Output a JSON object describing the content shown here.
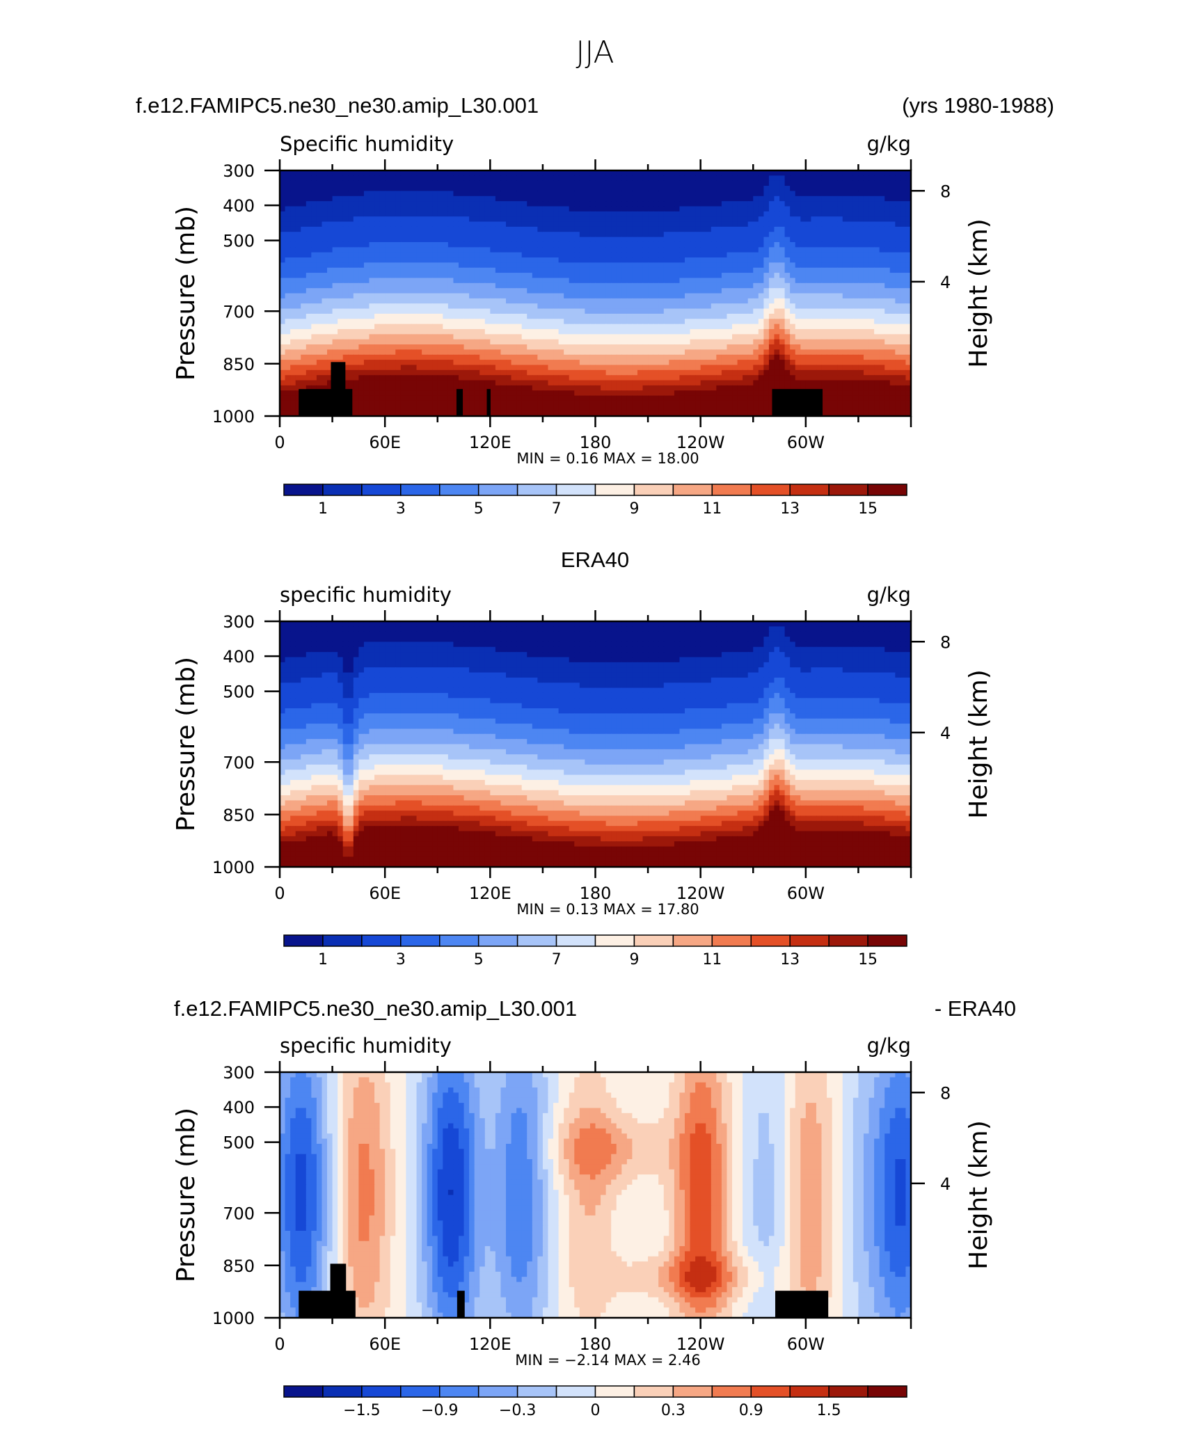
{
  "page_title": "JJA",
  "case_label": "f.e12.FAMIPC5.ne30_ne30.amip_L30.001",
  "years_label": "(yrs 1980-1988)",
  "chart_data": [
    {
      "type": "heatmap",
      "title": "",
      "subtitle_left": "Specific humidity",
      "subtitle_right": "g/kg",
      "ylabel": "Pressure (mb)",
      "y2label": "Height (km)",
      "x_ticks": [
        "0",
        "60E",
        "120E",
        "180",
        "120W",
        "60W"
      ],
      "y_ticks": [
        "300",
        "400",
        "500",
        "700",
        "850",
        "1000"
      ],
      "y2_ticks": [
        "8",
        "4"
      ],
      "minmax": "MIN =   0.16   MAX =   18.00",
      "colorbar_labels": [
        "1",
        "3",
        "5",
        "7",
        "9",
        "11",
        "13",
        "15"
      ],
      "colors": [
        "#08148c",
        "#0a2fb4",
        "#1648d6",
        "#2b66e8",
        "#4d86f2",
        "#7ca5f6",
        "#a7c4f8",
        "#d2e2fb",
        "#fdf0e4",
        "#fad0b8",
        "#f6a784",
        "#f17b50",
        "#e45027",
        "#c52f12",
        "#9c180a",
        "#780505"
      ],
      "levels": [
        0.5,
        1,
        2,
        3,
        4,
        5,
        6,
        7,
        8,
        9,
        10,
        11,
        12,
        13,
        14,
        15,
        16
      ],
      "topography": true
    },
    {
      "type": "heatmap",
      "title": "ERA40",
      "subtitle_left": "specific humidity",
      "subtitle_right": "g/kg",
      "ylabel": "Pressure (mb)",
      "y2label": "Height (km)",
      "x_ticks": [
        "0",
        "60E",
        "120E",
        "180",
        "120W",
        "60W"
      ],
      "y_ticks": [
        "300",
        "400",
        "500",
        "700",
        "850",
        "1000"
      ],
      "y2_ticks": [
        "8",
        "4"
      ],
      "minmax": "MIN =   0.13   MAX =   17.80",
      "colorbar_labels": [
        "1",
        "3",
        "5",
        "7",
        "9",
        "11",
        "13",
        "15"
      ],
      "colors": [
        "#08148c",
        "#0a2fb4",
        "#1648d6",
        "#2b66e8",
        "#4d86f2",
        "#7ca5f6",
        "#a7c4f8",
        "#d2e2fb",
        "#fdf0e4",
        "#fad0b8",
        "#f6a784",
        "#f17b50",
        "#e45027",
        "#c52f12",
        "#9c180a",
        "#780505"
      ],
      "levels": [
        0.5,
        1,
        2,
        3,
        4,
        5,
        6,
        7,
        8,
        9,
        10,
        11,
        12,
        13,
        14,
        15,
        16
      ],
      "topography": false
    },
    {
      "type": "heatmap",
      "title": "f.e12.FAMIPC5.ne30_ne30.amip_L30.001",
      "title_right": "- ERA40",
      "subtitle_left": "specific humidity",
      "subtitle_right": "g/kg",
      "ylabel": "Pressure (mb)",
      "y2label": "Height (km)",
      "x_ticks": [
        "0",
        "60E",
        "120E",
        "180",
        "120W",
        "60W"
      ],
      "y_ticks": [
        "300",
        "400",
        "500",
        "700",
        "850",
        "1000"
      ],
      "y2_ticks": [
        "8",
        "4"
      ],
      "minmax": "MIN =  −2.14   MAX =    2.46",
      "colorbar_labels": [
        "−1.5",
        "−0.9",
        "−0.3",
        "0",
        "0.3",
        "0.9",
        "1.5"
      ],
      "colors": [
        "#08148c",
        "#0a2fb4",
        "#1648d6",
        "#2b66e8",
        "#4d86f2",
        "#7ca5f6",
        "#a7c4f8",
        "#d2e2fb",
        "#fdf0e4",
        "#fad0b8",
        "#f6a784",
        "#f17b50",
        "#e45027",
        "#c52f12",
        "#9c180a",
        "#780505"
      ],
      "levels": [
        -2.1,
        -1.8,
        -1.5,
        -1.2,
        -0.9,
        -0.6,
        -0.3,
        0,
        0.3,
        0.6,
        0.9,
        1.2,
        1.5,
        1.8,
        2.1
      ],
      "topography": true
    }
  ]
}
